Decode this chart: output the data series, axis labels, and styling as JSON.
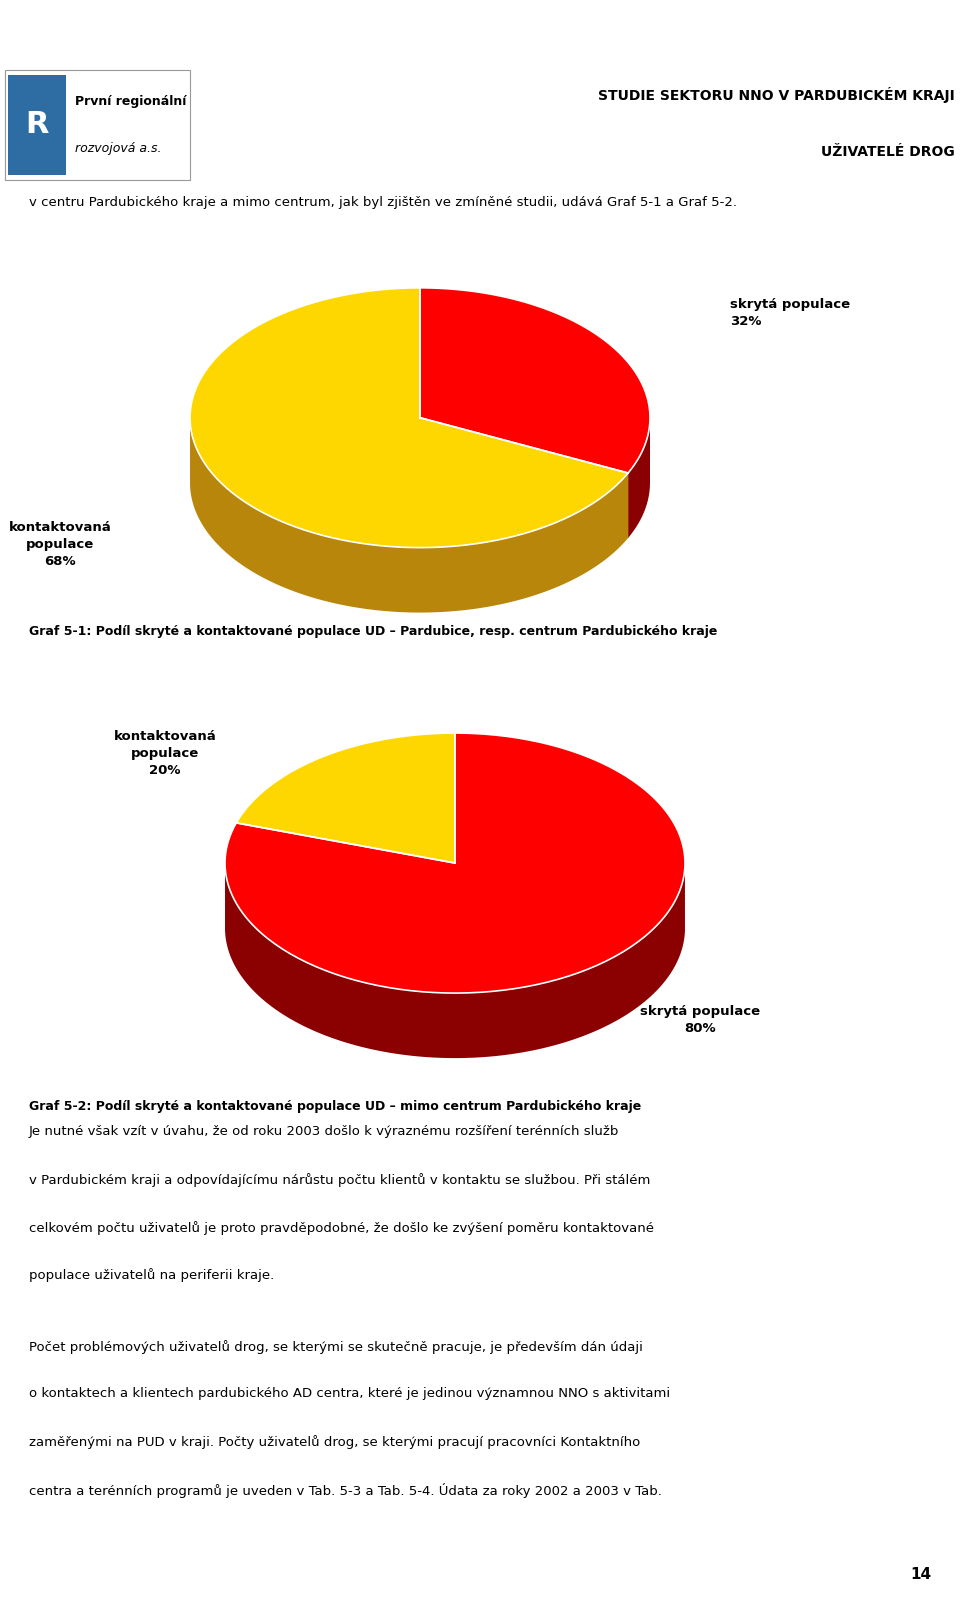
{
  "page_title_line1": "STUDIE SEKTORU NNO V PARDUBICKÉM KRAJI",
  "page_title_line2": "UŽIVATELÉ DROG",
  "header_text": "v centru Pardubického kraje a mimo centrum, jak byl zjištěn ve zmíněné studii, udává Graf 5-1 a Graf 5-2.",
  "chart1_slices": [
    68,
    32
  ],
  "chart1_top_colors": [
    "#FFD700",
    "#FF0000"
  ],
  "chart1_side_colors": [
    "#B8860B",
    "#8B0000"
  ],
  "chart1_caption": "Graf 5-1: Podíl skryté a kontaktované populace UD – Pardubice, resp. centrum Pardubického kraje",
  "chart2_slices": [
    20,
    80
  ],
  "chart2_top_colors": [
    "#FFD700",
    "#FF0000"
  ],
  "chart2_side_colors": [
    "#B8860B",
    "#8B0000"
  ],
  "chart2_caption": "Graf 5-2: Podíl skryté a kontaktované populace UD – mimo centrum Pardubického kraje",
  "body_text1_lines": [
    "Je nutné však vzít v úvahu, že od roku 2003 došlo k výraznému rozšíření terénních služb",
    "v Pardubickém kraji a odpovídajícímu nárůstu počtu klientů v kontaktu se službou. Při stálém",
    "celkovém počtu uživatelů je proto pravděpodobné, že došlo ke zvýšení poměru kontaktované",
    "populace uživatelů na periferii kraje."
  ],
  "body_text2_lines": [
    "Počet problémových uživatelů drog, se kterými se skutečně pracuje, je především dán údaji",
    "o kontaktech a klientech pardubického AD centra, které je jedinou významnou NNO s aktivitami",
    "zaměřenými na PUD v kraji. Počty uživatelů drog, se kterými pracují pracovníci Kontaktního",
    "centra a terénních programů je uveden v Tab. 5-3 a Tab. 5-4. Údata za roky 2002 a 2003 v Tab."
  ],
  "page_number": "14",
  "bg_color": "#FFFFFF",
  "chart1_label_kontakt": "kontaktovaná\npopulace\n68%",
  "chart1_label_skryta": "skrytá populace\n32%",
  "chart2_label_kontakt": "kontaktovaná\npopulace\n20%",
  "chart2_label_skryta": "skrytá populace\n80%"
}
